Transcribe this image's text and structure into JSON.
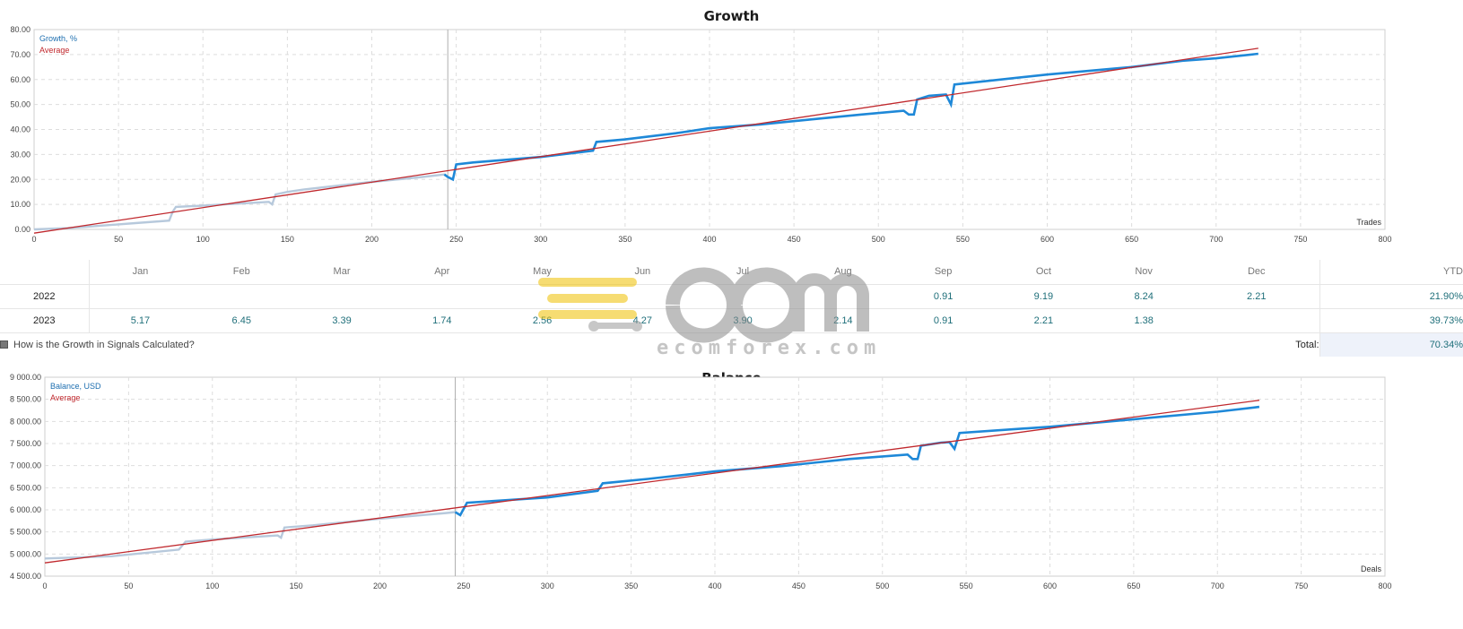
{
  "watermark": {
    "text": "ecomforex.com"
  },
  "colors": {
    "series_main": "#1e88d8",
    "series_past": "#b7c9dc",
    "average": "#c0282d",
    "grid": "#dddddd"
  },
  "chart_data": [
    {
      "type": "line",
      "title": "Growth",
      "xlabel": "Trades",
      "xlim": [
        0,
        800
      ],
      "ylim": [
        0,
        80
      ],
      "x_ticks": [
        "0",
        "50",
        "100",
        "150",
        "200",
        "250",
        "300",
        "350",
        "400",
        "450",
        "500",
        "550",
        "600",
        "650",
        "700",
        "750",
        "800"
      ],
      "y_ticks": [
        "0.00",
        "10.00",
        "20.00",
        "30.00",
        "40.00",
        "50.00",
        "60.00",
        "70.00",
        "80.00"
      ],
      "legend": [
        "Growth, %",
        "Average"
      ],
      "legend_position": "top-left",
      "grid": true,
      "divider_x": 245,
      "series": [
        {
          "name": "Growth, %",
          "points": [
            [
              0,
              0
            ],
            [
              20,
              0.5
            ],
            [
              40,
              1.5
            ],
            [
              60,
              2.5
            ],
            [
              80,
              3.5
            ],
            [
              82,
              7
            ],
            [
              84,
              9
            ],
            [
              100,
              9.5
            ],
            [
              139,
              11
            ],
            [
              141,
              10
            ],
            [
              143,
              14
            ],
            [
              150,
              15
            ],
            [
              160,
              16
            ],
            [
              200,
              19
            ],
            [
              230,
              21
            ],
            [
              243,
              22
            ],
            [
              245,
              21
            ],
            [
              248,
              20
            ],
            [
              250,
              26
            ],
            [
              260,
              26.8
            ],
            [
              300,
              29
            ],
            [
              331,
              31.5
            ],
            [
              333,
              35
            ],
            [
              350,
              36
            ],
            [
              380,
              38.5
            ],
            [
              400,
              40.5
            ],
            [
              430,
              42
            ],
            [
              460,
              44
            ],
            [
              490,
              46
            ],
            [
              515,
              47.5
            ],
            [
              518,
              46
            ],
            [
              521,
              46
            ],
            [
              523,
              52
            ],
            [
              530,
              53.5
            ],
            [
              540,
              54
            ],
            [
              543,
              50
            ],
            [
              545,
              58
            ],
            [
              600,
              62
            ],
            [
              650,
              65
            ],
            [
              680,
              67.5
            ],
            [
              700,
              68.5
            ],
            [
              725,
              70.3
            ]
          ]
        },
        {
          "name": "Average",
          "points": [
            [
              0,
              -1.5
            ],
            [
              725,
              72.5
            ]
          ]
        }
      ]
    },
    {
      "type": "line",
      "title": "Balance",
      "xlabel": "Deals",
      "xlim": [
        0,
        800
      ],
      "ylim": [
        4500,
        9000
      ],
      "x_ticks": [
        "0",
        "50",
        "100",
        "150",
        "200",
        "250",
        "300",
        "350",
        "400",
        "450",
        "500",
        "550",
        "600",
        "650",
        "700",
        "750",
        "800"
      ],
      "y_ticks": [
        "4 500.00",
        "5 000.00",
        "5 500.00",
        "6 000.00",
        "6 500.00",
        "7 000.00",
        "7 500.00",
        "8 000.00",
        "8 500.00",
        "9 000.00"
      ],
      "legend": [
        "Balance, USD",
        "Average"
      ],
      "legend_position": "top-left",
      "grid": true,
      "divider_x": 245,
      "series": [
        {
          "name": "Balance, USD",
          "points": [
            [
              0,
              4900
            ],
            [
              40,
              4950
            ],
            [
              80,
              5100
            ],
            [
              84,
              5280
            ],
            [
              100,
              5330
            ],
            [
              139,
              5420
            ],
            [
              141,
              5370
            ],
            [
              143,
              5600
            ],
            [
              160,
              5650
            ],
            [
              200,
              5800
            ],
            [
              240,
              5930
            ],
            [
              245,
              5950
            ],
            [
              248,
              5880
            ],
            [
              252,
              6160
            ],
            [
              300,
              6280
            ],
            [
              330,
              6430
            ],
            [
              333,
              6600
            ],
            [
              360,
              6700
            ],
            [
              400,
              6870
            ],
            [
              440,
              6990
            ],
            [
              480,
              7150
            ],
            [
              515,
              7250
            ],
            [
              518,
              7150
            ],
            [
              521,
              7150
            ],
            [
              523,
              7450
            ],
            [
              535,
              7520
            ],
            [
              540,
              7530
            ],
            [
              543,
              7380
            ],
            [
              546,
              7740
            ],
            [
              600,
              7880
            ],
            [
              650,
              8050
            ],
            [
              700,
              8220
            ],
            [
              725,
              8330
            ]
          ]
        },
        {
          "name": "Average",
          "points": [
            [
              0,
              4800
            ],
            [
              725,
              8480
            ]
          ]
        }
      ]
    }
  ],
  "monthly_table": {
    "months": [
      "Jan",
      "Feb",
      "Mar",
      "Apr",
      "May",
      "Jun",
      "Jul",
      "Aug",
      "Sep",
      "Oct",
      "Nov",
      "Dec"
    ],
    "ytd_label": "YTD",
    "rows": [
      {
        "year": "2022",
        "values": [
          "",
          "",
          "",
          "",
          "",
          "",
          "",
          "",
          "0.91",
          "9.19",
          "8.24",
          "2.21"
        ],
        "ytd": "21.90%"
      },
      {
        "year": "2023",
        "values": [
          "5.17",
          "6.45",
          "3.39",
          "1.74",
          "2.56",
          "4.27",
          "3.90",
          "2.14",
          "0.91",
          "2.21",
          "1.38",
          ""
        ],
        "ytd": "39.73%"
      }
    ],
    "faq_text": "How is the Growth in Signals Calculated?",
    "total_label": "Total:",
    "total_value": "70.34%"
  }
}
